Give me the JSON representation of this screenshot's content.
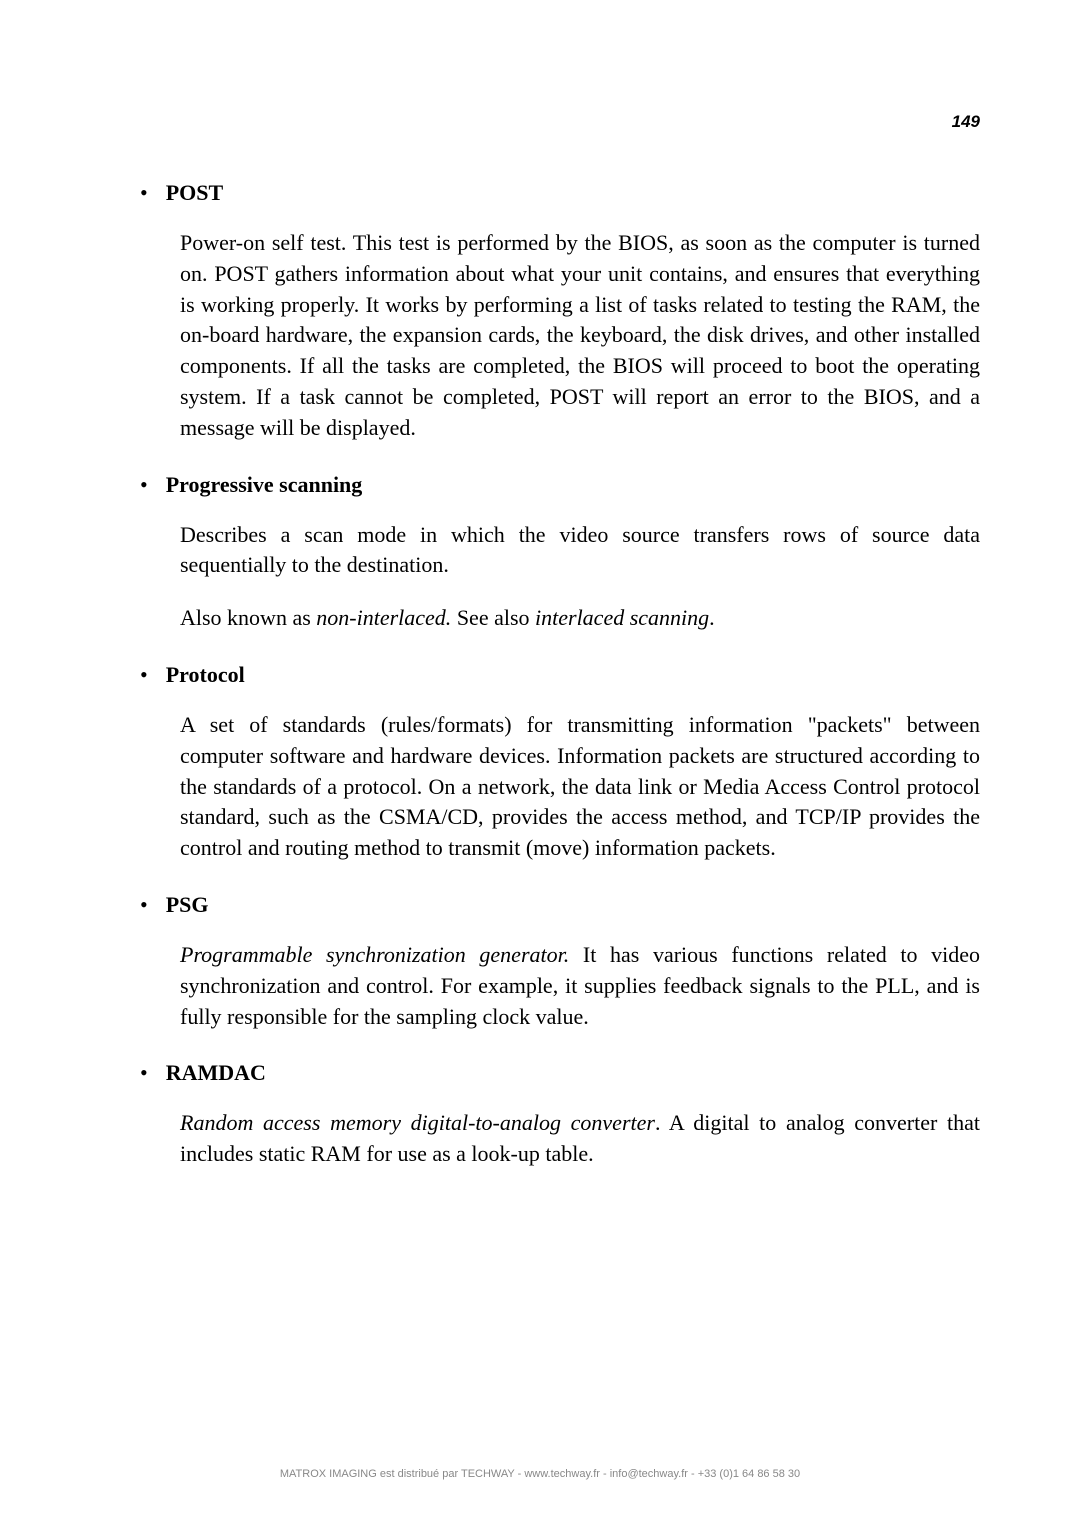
{
  "page_number": "149",
  "entries": [
    {
      "term": "POST",
      "paragraphs": [
        "Power-on self test. This test is performed by the BIOS, as soon as the computer is turned on. POST gathers information about what your unit contains, and ensures that everything is working properly. It works by performing a list of tasks related to testing the RAM, the on-board hardware, the expansion cards, the keyboard, the disk drives, and other installed components. If all the tasks are completed, the BIOS will proceed to boot the operating system. If a task cannot be completed, POST will report an error to the BIOS, and a message will be displayed."
      ]
    },
    {
      "term": "Progressive scanning",
      "paragraphs": [
        "Describes a scan mode in which the video source transfers rows of source data sequentially to the destination.",
        "Also known as <span class=\"italic\">non-interlaced.</span> See also <span class=\"italic\">interlaced scanning</span>."
      ]
    },
    {
      "term": "Protocol",
      "paragraphs": [
        "A set of standards (rules/formats) for transmitting information \"packets\" between computer software and hardware devices. Information packets are structured according to the standards of a protocol. On a network, the data link or Media Access Control protocol standard, such as the CSMA/CD, provides the access method, and TCP/IP provides the control and routing method to transmit (move) information packets."
      ]
    },
    {
      "term": "PSG",
      "paragraphs": [
        "<span class=\"italic\">Programmable synchronization generator.</span> It has various functions related to video synchronization and control. For example, it supplies feedback signals to the PLL, and is fully responsible for the sampling clock value."
      ]
    },
    {
      "term": "RAMDAC",
      "paragraphs": [
        "<span class=\"italic\">Random access memory digital-to-analog converter</span>. A digital to analog converter that includes static RAM for use as a look-up table."
      ]
    }
  ],
  "footer_text": "MATROX IMAGING est distribué par TECHWAY - www.techway.fr - info@techway.fr - +33 (0)1 64 86 58 30",
  "colors": {
    "background": "#ffffff",
    "text": "#000000",
    "footer": "#888888"
  },
  "typography": {
    "body_font": "Garamond serif",
    "body_size_pt": 16,
    "term_weight": "bold",
    "page_number_font": "Arial sans-serif bold italic",
    "page_number_size_pt": 13,
    "footer_size_pt": 8
  }
}
